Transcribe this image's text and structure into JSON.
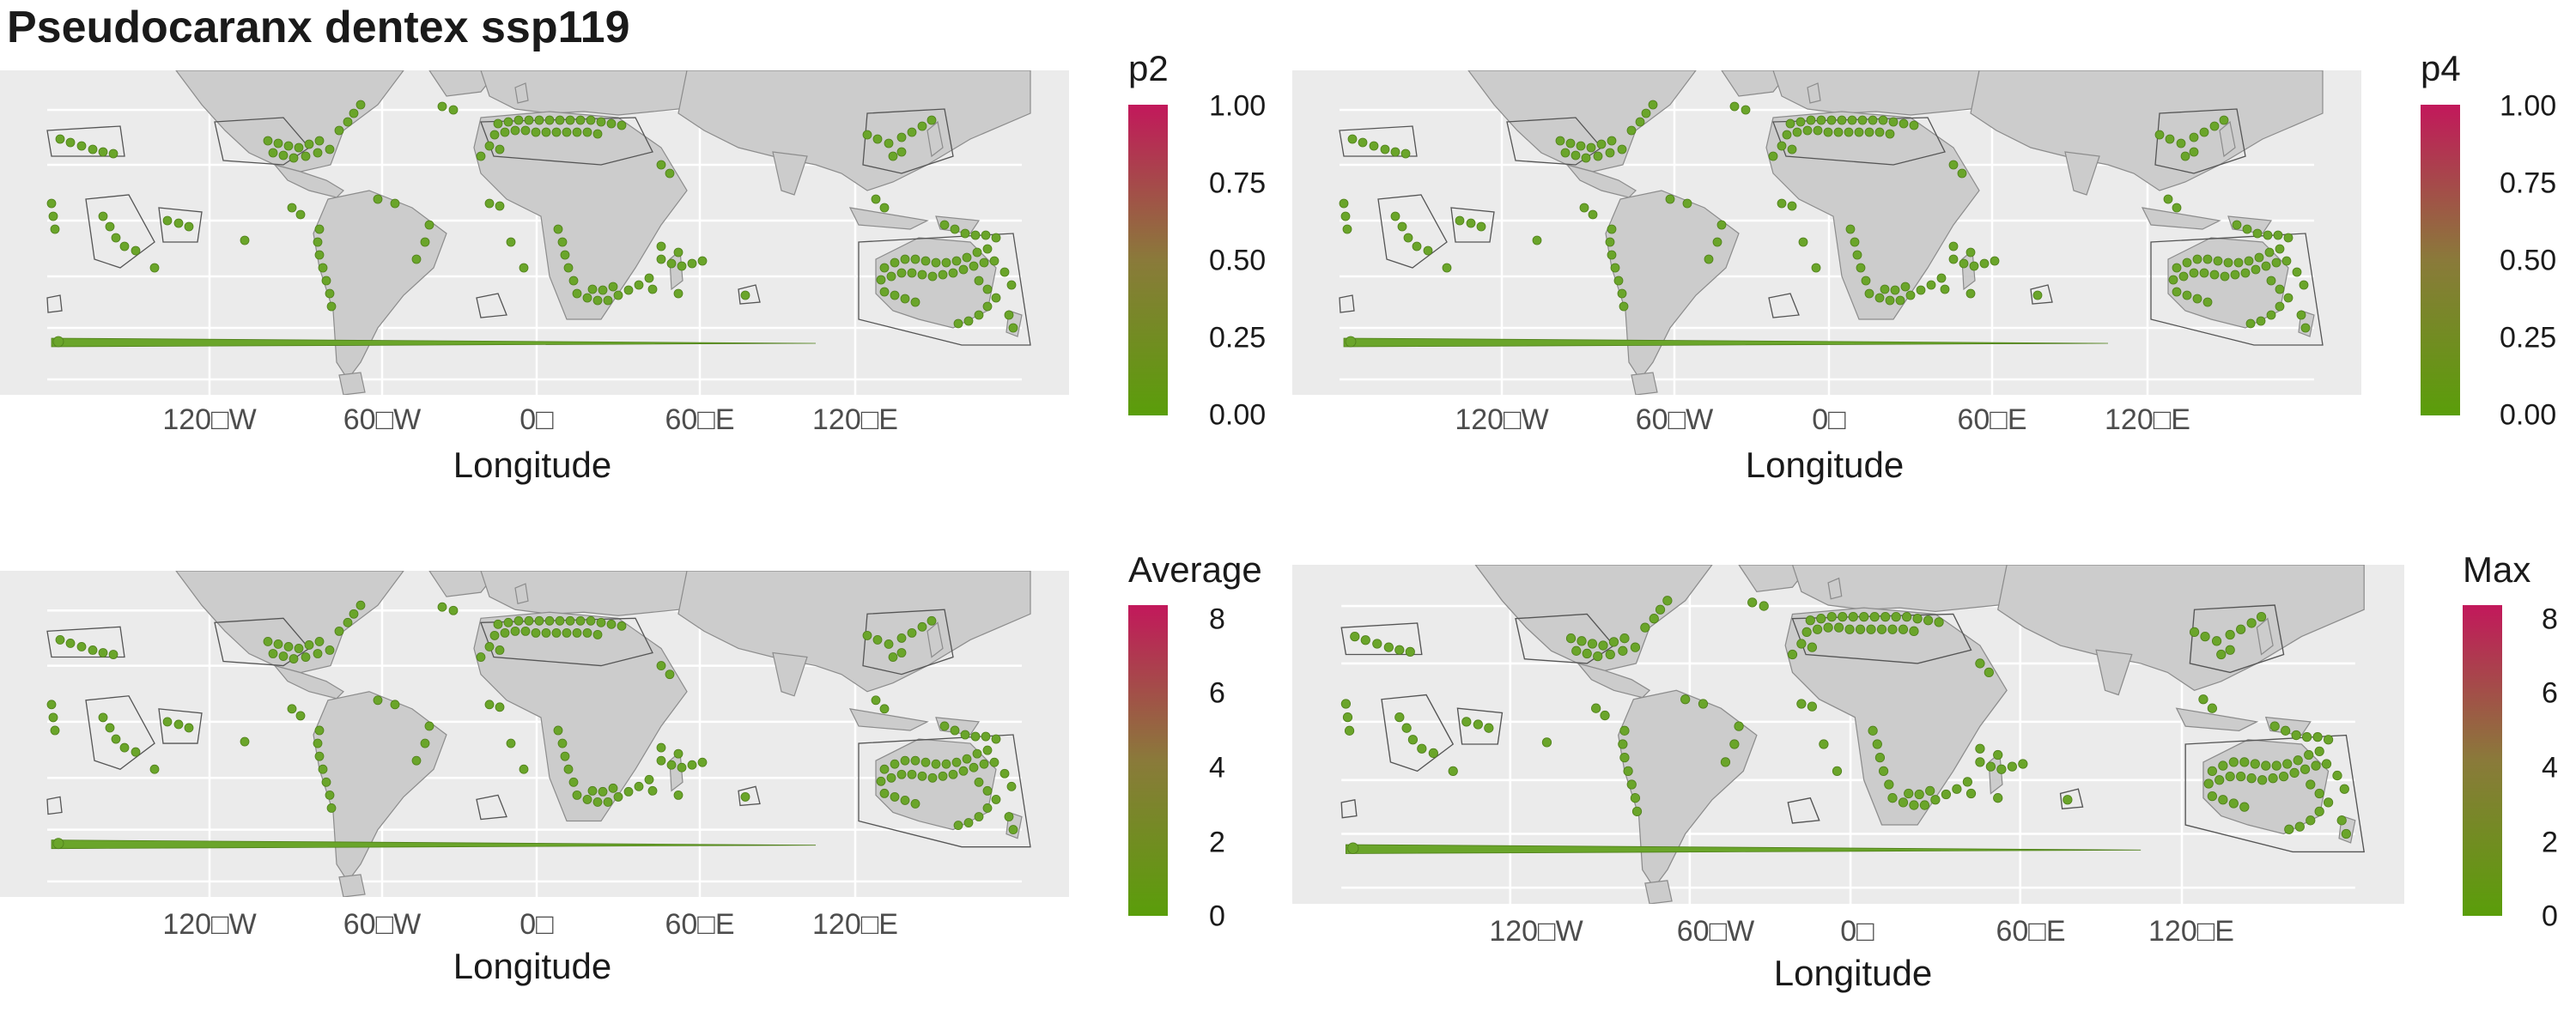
{
  "title": "Pseudocaranx dentex ssp119",
  "colors": {
    "panel_bg": "#ebebeb",
    "land": "#cccccc",
    "coast": "#7f7f7f",
    "cell": "#6aa52a",
    "cell_edge": "#4f7f1a",
    "grid": "#ffffff",
    "scale_high": "#c2185b",
    "scale_mid": "#8a7a3a",
    "scale_low": "#5a9e0a"
  },
  "xaxis": {
    "label": "Longitude",
    "ticks": [
      "120□W",
      "60□W",
      "0□",
      "60□E",
      "120□E"
    ]
  },
  "panels": [
    {
      "id": "p2",
      "legend_title": "p2",
      "legend_ticks": [
        "1.00",
        "0.75",
        "0.50",
        "0.25",
        "0.00"
      ]
    },
    {
      "id": "p4",
      "legend_title": "p4",
      "legend_ticks": [
        "1.00",
        "0.75",
        "0.50",
        "0.25",
        "0.00"
      ]
    },
    {
      "id": "average",
      "legend_title": "Average",
      "legend_ticks": [
        "8",
        "6",
        "4",
        "2",
        "0"
      ]
    },
    {
      "id": "max",
      "legend_title": "Max",
      "legend_ticks": [
        "8",
        "6",
        "4",
        "2",
        "0"
      ]
    }
  ]
}
